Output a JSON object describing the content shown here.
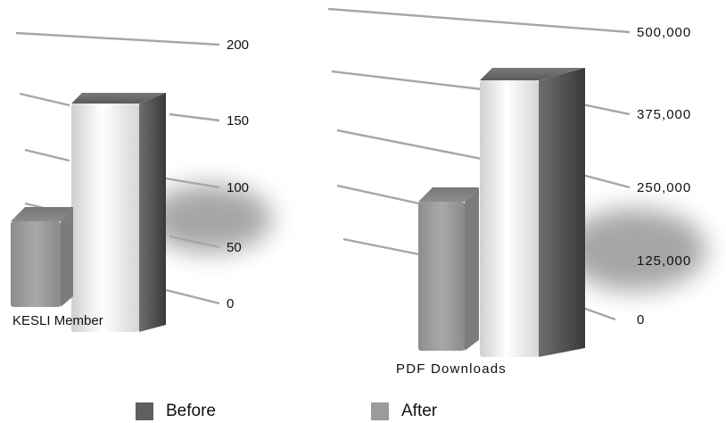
{
  "colors": {
    "before": "#5f5f5f",
    "after": "#9b9b9b",
    "grid": "#a6a6a6",
    "text": "#111111"
  },
  "legend": [
    {
      "name": "Before",
      "color": "#5f5f5f"
    },
    {
      "name": "After",
      "color": "#9b9b9b"
    }
  ],
  "chart_data": [
    {
      "type": "bar",
      "categories": [
        "KESLI Member"
      ],
      "series": [
        {
          "name": "Before",
          "values": [
            160
          ]
        },
        {
          "name": "After",
          "values": [
            50
          ]
        }
      ],
      "yticks": [
        "0",
        "50",
        "100",
        "150",
        "200"
      ],
      "ylim": [
        0,
        200
      ],
      "grid": true,
      "three_d": true
    },
    {
      "type": "bar",
      "categories": [
        "PDF Downloads"
      ],
      "series": [
        {
          "name": "Before",
          "values": [
            450000
          ]
        },
        {
          "name": "After",
          "values": [
            190000
          ]
        }
      ],
      "yticks": [
        "0",
        "125,000",
        "250,000",
        "375,000",
        "500,000"
      ],
      "ylim": [
        0,
        500000
      ],
      "grid": true,
      "three_d": true
    }
  ]
}
